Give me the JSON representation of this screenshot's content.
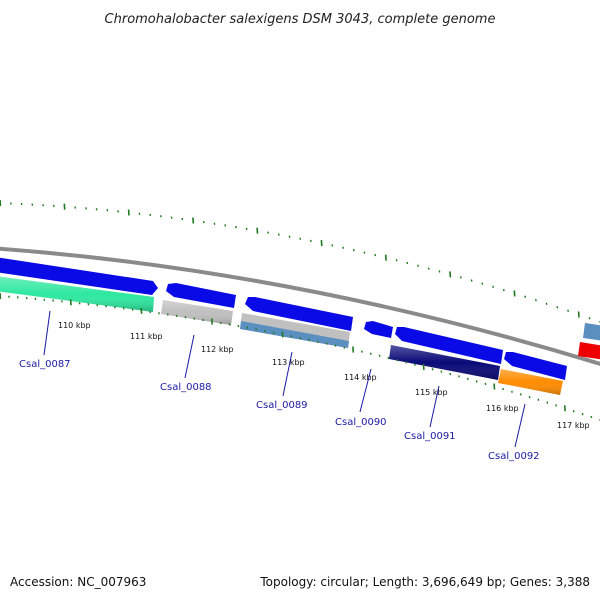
{
  "title": "Chromohalobacter salexigens DSM 3043, complete genome",
  "footer": {
    "accession": "Accession: NC_007963",
    "summary": "Topology: circular; Length: 3,696,649 bp; Genes: 3,388"
  },
  "tick_labels": [
    "110 kbp",
    "111 kbp",
    "112 kbp",
    "113 kbp",
    "114 kbp",
    "115 kbp",
    "116 kbp",
    "117 kbp"
  ],
  "gene_labels": [
    "Csal_0087",
    "Csal_0088",
    "Csal_0089",
    "Csal_0090",
    "Csal_0091",
    "Csal_0092"
  ],
  "colors": {
    "backbone": "#8a8a8a",
    "tick": "#1f7a1f",
    "cds": "#0a0ae6",
    "label_link": "#1a1aa6",
    "feature_seagreen": "#2ee8a0",
    "feature_gray": "#bfbfbf",
    "feature_steelblue": "#5a8fc0",
    "feature_navy": "#0a0a78",
    "feature_orange": "#ff8c00",
    "feature_red": "#ee0000"
  }
}
